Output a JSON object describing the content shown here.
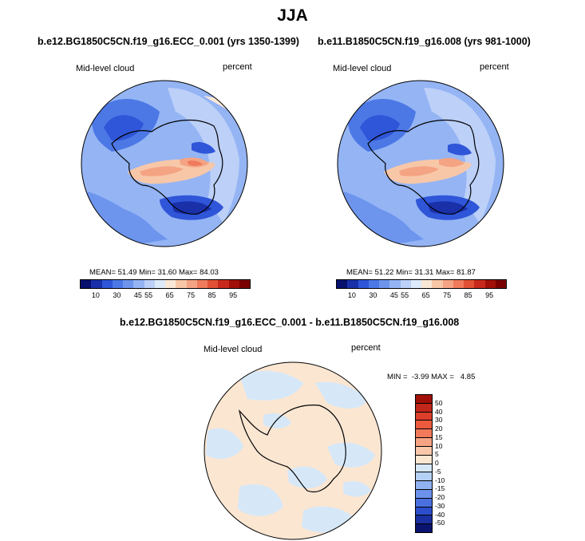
{
  "title": "JJA",
  "panels": [
    {
      "case": "b.e12.BG1850C5CN.f19_g16.ECC_0.001 (yrs 1350-1399)",
      "variable": "Mid-level cloud",
      "units": "percent",
      "mean_label": "MEAN=",
      "mean": "51.49",
      "min_label": "Min=",
      "min": "31.60",
      "max_label": "Max=",
      "max": "84.03"
    },
    {
      "case": "b.e11.B1850C5CN.f19_g16.008 (yrs 981-1000)",
      "variable": "Mid-level cloud",
      "units": "percent",
      "mean_label": "MEAN=",
      "mean": "51.22",
      "min_label": "Min=",
      "min": "31.31",
      "max_label": "Max=",
      "max": "81.87"
    }
  ],
  "diff_panel": {
    "title": "b.e12.BG1850C5CN.f19_g16.ECC_0.001 - b.e11.B1850C5CN.f19_g16.008",
    "variable": "Mid-level cloud",
    "units": "percent",
    "minmax": "MIN =  -3.99 MAX =   4.85"
  },
  "colorbar": {
    "ticks": [
      "10",
      "30",
      "45",
      "55",
      "65",
      "75",
      "85",
      "95"
    ],
    "colors": [
      "#08106e",
      "#1a30a8",
      "#2f55d8",
      "#4c78e6",
      "#6d95ee",
      "#94b4f4",
      "#bcd0f8",
      "#ddeaf9",
      "#fae8d6",
      "#f7c7a8",
      "#f4a383",
      "#ef7a5c",
      "#e25036",
      "#c72a1c",
      "#a11008",
      "#7a0000"
    ]
  },
  "diff_colorbar": {
    "ticks": [
      "50",
      "40",
      "30",
      "20",
      "15",
      "10",
      "5",
      "0",
      "-5",
      "-10",
      "-15",
      "-20",
      "-30",
      "-40",
      "-50"
    ],
    "colors": [
      "#a01008",
      "#c3261a",
      "#dc3e2a",
      "#ec5a3e",
      "#f27a5a",
      "#f6a383",
      "#f9c8aa",
      "#fbe6d2",
      "#d6e8f8",
      "#b4d0f5",
      "#90b2f0",
      "#6c92eb",
      "#4a70e0",
      "#2c4ecc",
      "#1a30a0",
      "#0a146e"
    ]
  },
  "colors": {
    "land_outline": "#000000",
    "diff_positive": "#fbe6d2",
    "diff_negative": "#d6e8f8"
  }
}
